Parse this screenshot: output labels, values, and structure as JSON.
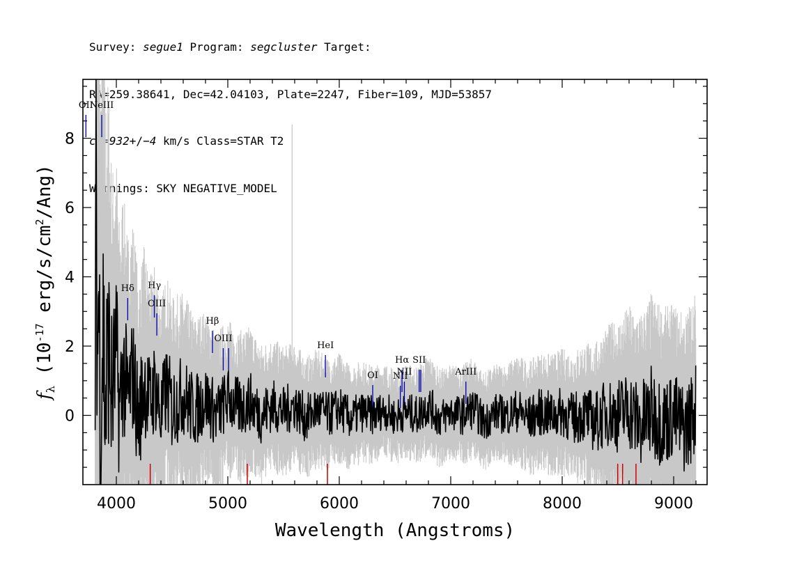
{
  "header": {
    "line1": {
      "survey_label": "Survey: ",
      "survey": "segue1",
      "program_label": " Program: ",
      "program": "segcluster",
      "target_label": " Target:"
    },
    "line2": "RA=259.38641, Dec=42.04103, Plate=2247, Fiber=109, MJD=53857",
    "line3": {
      "cz": "cz=932",
      "pm": "+/−",
      "err": "4",
      "rest": " km/s Class=STAR T2"
    },
    "line4": "Warnings: SKY NEGATIVE_MODEL"
  },
  "chart_data": {
    "type": "line",
    "title": "",
    "xlabel": "Wavelength (Angstroms)",
    "ylabel": "f_λ (10^-17 erg/s/cm^2/Ang)",
    "xlim": [
      3700,
      9300
    ],
    "ylim": [
      -2.0,
      9.7
    ],
    "xticks": [
      4000,
      5000,
      6000,
      7000,
      8000,
      9000
    ],
    "yticks": [
      0,
      2,
      4,
      6,
      8
    ],
    "series": [
      {
        "role": "flux",
        "color": "#000000",
        "points": [
          [
            3810,
            -1.0
          ],
          [
            3820,
            7.6
          ],
          [
            3830,
            1.5
          ],
          [
            3840,
            4.0
          ],
          [
            3860,
            -0.5
          ],
          [
            3880,
            3.0
          ],
          [
            3900,
            0.2
          ],
          [
            3930,
            2.0
          ],
          [
            3960,
            0.5
          ],
          [
            4000,
            1.8
          ],
          [
            4030,
            0.0
          ],
          [
            4060,
            1.4
          ],
          [
            4100,
            0.4
          ],
          [
            4150,
            1.2
          ],
          [
            4200,
            -0.2
          ],
          [
            4250,
            1.0
          ],
          [
            4300,
            0.3
          ],
          [
            4350,
            0.9
          ],
          [
            4400,
            -0.1
          ],
          [
            4450,
            0.8
          ],
          [
            4500,
            0.2
          ],
          [
            4600,
            0.6
          ],
          [
            4700,
            0.1
          ],
          [
            4800,
            0.5
          ],
          [
            4900,
            0.0
          ],
          [
            5000,
            0.5
          ],
          [
            5100,
            0.2
          ],
          [
            5200,
            0.4
          ],
          [
            5300,
            0.0
          ],
          [
            5400,
            0.3
          ],
          [
            5500,
            0.1
          ],
          [
            5600,
            0.3
          ],
          [
            5700,
            -0.1
          ],
          [
            5800,
            0.2
          ],
          [
            5900,
            0.0
          ],
          [
            6000,
            0.2
          ],
          [
            6100,
            -0.1
          ],
          [
            6200,
            0.1
          ],
          [
            6300,
            0.0
          ],
          [
            6400,
            0.15
          ],
          [
            6500,
            -0.05
          ],
          [
            6600,
            0.1
          ],
          [
            6700,
            0.0
          ],
          [
            6800,
            0.3
          ],
          [
            6900,
            -0.1
          ],
          [
            7000,
            0.1
          ],
          [
            7100,
            0.0
          ],
          [
            7200,
            0.2
          ],
          [
            7300,
            -0.2
          ],
          [
            7400,
            0.1
          ],
          [
            7500,
            0.0
          ],
          [
            7600,
            0.15
          ],
          [
            7700,
            -0.1
          ],
          [
            7800,
            0.1
          ],
          [
            7900,
            0.0
          ],
          [
            8000,
            0.1
          ],
          [
            8100,
            -0.1
          ],
          [
            8200,
            0.05
          ],
          [
            8300,
            -0.2
          ],
          [
            8400,
            0.1
          ],
          [
            8500,
            0.0
          ],
          [
            8600,
            0.2
          ],
          [
            8700,
            -0.3
          ],
          [
            8800,
            0.1
          ],
          [
            8900,
            -0.2
          ],
          [
            9000,
            0.0
          ],
          [
            9100,
            -0.4
          ],
          [
            9200,
            0.2
          ]
        ]
      },
      {
        "role": "error",
        "color": "#c8c8c8",
        "points": [
          [
            3810,
            9.5
          ],
          [
            3850,
            9.3
          ],
          [
            3900,
            8.0
          ],
          [
            3950,
            6.0
          ],
          [
            4000,
            5.0
          ],
          [
            4100,
            4.2
          ],
          [
            4200,
            3.6
          ],
          [
            4300,
            3.2
          ],
          [
            4400,
            3.0
          ],
          [
            4500,
            2.8
          ],
          [
            4600,
            2.6
          ],
          [
            4700,
            2.4
          ],
          [
            4800,
            2.2
          ],
          [
            4900,
            2.1
          ],
          [
            5000,
            2.0
          ],
          [
            5200,
            1.9
          ],
          [
            5400,
            1.7
          ],
          [
            5600,
            1.6
          ],
          [
            5800,
            1.5
          ],
          [
            6000,
            1.4
          ],
          [
            6200,
            1.3
          ],
          [
            6400,
            1.2
          ],
          [
            6600,
            1.2
          ],
          [
            6800,
            1.3
          ],
          [
            7000,
            1.2
          ],
          [
            7200,
            1.3
          ],
          [
            7400,
            1.2
          ],
          [
            7600,
            1.4
          ],
          [
            7800,
            1.5
          ],
          [
            8000,
            1.6
          ],
          [
            8200,
            1.8
          ],
          [
            8400,
            2.2
          ],
          [
            8600,
            2.6
          ],
          [
            8800,
            3.0
          ],
          [
            9000,
            2.8
          ],
          [
            9200,
            3.0
          ]
        ],
        "sky_spike": [
          5577,
          8.4
        ]
      }
    ],
    "emission_lines": [
      {
        "label": "OII",
        "wave": 3727,
        "color": "#0000aa"
      },
      {
        "label": "NeIII",
        "wave": 3869,
        "color": "#0000aa"
      },
      {
        "label": "Hδ",
        "wave": 4102,
        "color": "#0000aa"
      },
      {
        "label": "Hγ",
        "wave": 4341,
        "color": "#0000aa"
      },
      {
        "label": "OIII",
        "wave": 4363,
        "color": "#0000aa"
      },
      {
        "label": "Hβ",
        "wave": 4862,
        "color": "#0000aa"
      },
      {
        "label": "OIII",
        "wave": 4959,
        "color": "#0000aa"
      },
      {
        "label": "OIII",
        "wave": 5007,
        "color": "#0000aa"
      },
      {
        "label": "HeI",
        "wave": 5876,
        "color": "#0000aa"
      },
      {
        "label": "OI",
        "wave": 6300,
        "color": "#0000aa"
      },
      {
        "label": "NII",
        "wave": 6548,
        "color": "#0000aa"
      },
      {
        "label": "Hα",
        "wave": 6563,
        "color": "#0000aa"
      },
      {
        "label": "NII",
        "wave": 6584,
        "color": "#0000aa"
      },
      {
        "label": "SII",
        "wave": 6717,
        "color": "#0000aa"
      },
      {
        "label": "SII",
        "wave": 6731,
        "color": "#0000aa"
      },
      {
        "label": "ArIII",
        "wave": 7136,
        "color": "#0000aa"
      }
    ],
    "absorption_marks": [
      {
        "wave": 4304,
        "color": "#cc0000"
      },
      {
        "wave": 5175,
        "color": "#cc0000"
      },
      {
        "wave": 5894,
        "color": "#cc0000"
      },
      {
        "wave": 8498,
        "color": "#cc0000"
      },
      {
        "wave": 8542,
        "color": "#cc0000"
      },
      {
        "wave": 8662,
        "color": "#cc0000"
      }
    ]
  }
}
